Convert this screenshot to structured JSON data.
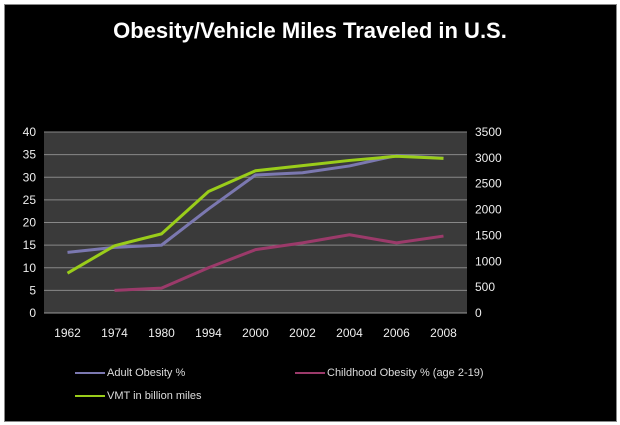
{
  "chart_data": {
    "type": "line",
    "title": "Obesity/Vehicle Miles Traveled in U.S.",
    "categories": [
      "1962",
      "1974",
      "1980",
      "1994",
      "2000",
      "2002",
      "2004",
      "2006",
      "2008"
    ],
    "y_left": {
      "range": [
        0,
        40
      ],
      "ticks": [
        0,
        5,
        10,
        15,
        20,
        25,
        30,
        35,
        40
      ]
    },
    "y_right": {
      "range": [
        0,
        3500
      ],
      "ticks": [
        0,
        500,
        1000,
        1500,
        2000,
        2500,
        3000,
        3500
      ]
    },
    "grid": true,
    "legend_position": "bottom",
    "series": [
      {
        "name": "Adult Obesity %",
        "axis": "left",
        "color": "#7b78b0",
        "values": [
          13.4,
          14.5,
          15,
          23,
          30.5,
          31,
          32.5,
          34.8,
          34.2
        ]
      },
      {
        "name": "Childhood Obesity % (age 2-19)",
        "axis": "left",
        "color": "#9b3a6a",
        "values": [
          null,
          5,
          5.5,
          10,
          14,
          15.5,
          17.3,
          15.5,
          17
        ]
      },
      {
        "name": "VMT in billion miles",
        "axis": "right",
        "color": "#9acd1a",
        "values": [
          770,
          1300,
          1530,
          2350,
          2750,
          2850,
          2950,
          3030,
          2990
        ]
      }
    ]
  }
}
